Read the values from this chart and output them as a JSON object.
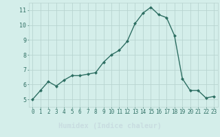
{
  "x": [
    0,
    1,
    2,
    3,
    4,
    5,
    6,
    7,
    8,
    9,
    10,
    11,
    12,
    13,
    14,
    15,
    16,
    17,
    18,
    19,
    20,
    21,
    22,
    23
  ],
  "y": [
    5.0,
    5.6,
    6.2,
    5.9,
    6.3,
    6.6,
    6.6,
    6.7,
    6.8,
    7.5,
    8.0,
    8.3,
    8.9,
    10.1,
    10.8,
    11.2,
    10.7,
    10.5,
    9.3,
    6.4,
    5.6,
    5.6,
    5.1,
    5.2
  ],
  "xlabel": "Humidex (Indice chaleur)",
  "xlim": [
    -0.5,
    23.5
  ],
  "ylim": [
    4.5,
    11.5
  ],
  "yticks": [
    5,
    6,
    7,
    8,
    9,
    10,
    11
  ],
  "xticks": [
    0,
    1,
    2,
    3,
    4,
    5,
    6,
    7,
    8,
    9,
    10,
    11,
    12,
    13,
    14,
    15,
    16,
    17,
    18,
    19,
    20,
    21,
    22,
    23
  ],
  "line_color": "#2d6e62",
  "marker": "D",
  "marker_size": 2.0,
  "bg_plot": "#d4eeea",
  "bg_xlabel": "#3a5068",
  "grid_color": "#b8d4d0",
  "xlabel_color": "#c8dce0",
  "tick_color": "#2d6e62",
  "tick_fontsize": 5.5,
  "ylabel_fontsize": 6.0,
  "xlabel_fontsize": 7.5
}
